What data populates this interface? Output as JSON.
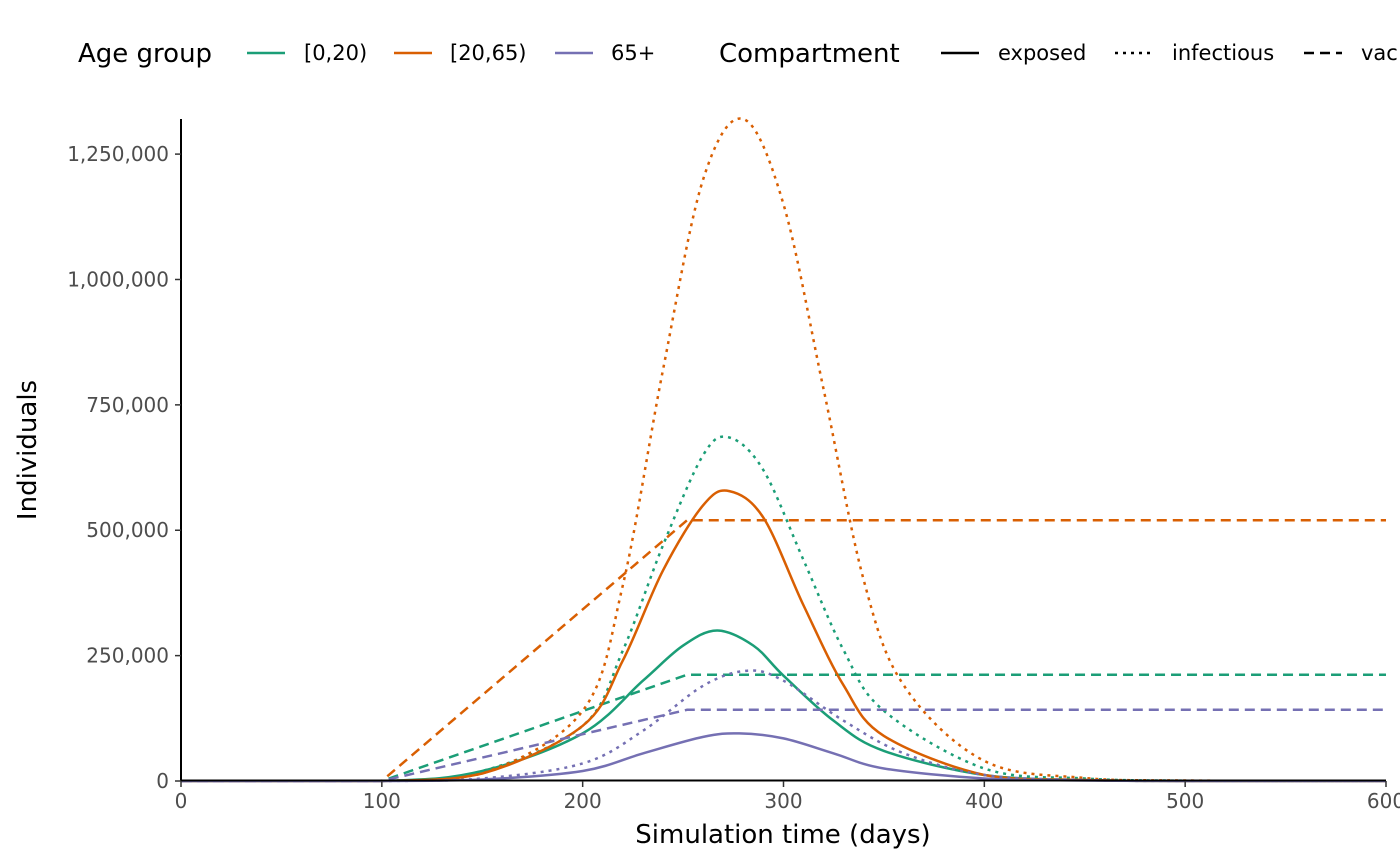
{
  "chart_data": {
    "type": "line",
    "title": "",
    "xlabel": "Simulation time (days)",
    "ylabel": "Individuals",
    "xlim": [
      0,
      600
    ],
    "ylim": [
      0,
      1320000
    ],
    "x_ticks": [
      0,
      100,
      200,
      300,
      400,
      500,
      600
    ],
    "x_tick_labels": [
      "0",
      "100",
      "200",
      "300",
      "400",
      "500",
      "600"
    ],
    "y_ticks": [
      0,
      250000,
      500000,
      750000,
      1000000,
      1250000
    ],
    "y_tick_labels": [
      "0",
      "250,000",
      "500,000",
      "750,000",
      "1,000,000",
      "1,250,000"
    ],
    "grid": false,
    "legend_placement": "top",
    "legend": {
      "age_group": {
        "title": "Age group",
        "entries": [
          {
            "label": "[0,20)",
            "color": "#1b9e77"
          },
          {
            "label": "[20,65)",
            "color": "#d95f02"
          },
          {
            "label": "65+",
            "color": "#7570b3"
          }
        ]
      },
      "compartment": {
        "title": "Compartment",
        "entries": [
          {
            "label": "exposed",
            "linetype": "solid"
          },
          {
            "label": "infectious",
            "linetype": "dotted"
          },
          {
            "label": "vac",
            "linetype": "dashed"
          }
        ]
      }
    },
    "series": [
      {
        "age_group": "[0,20)",
        "compartment": "exposed",
        "x": [
          0,
          100,
          150,
          200,
          230,
          250,
          267,
          285,
          300,
          325,
          350,
          400,
          450,
          500,
          600
        ],
        "y": [
          0,
          0,
          20000,
          95000,
          200000,
          270000,
          300000,
          270000,
          210000,
          120000,
          60000,
          12000,
          2000,
          0,
          0
        ]
      },
      {
        "age_group": "[0,20)",
        "compartment": "infectious",
        "x": [
          0,
          100,
          150,
          200,
          220,
          240,
          260,
          273,
          290,
          310,
          330,
          350,
          400,
          450,
          500,
          600
        ],
        "y": [
          0,
          0,
          20000,
          110000,
          260000,
          470000,
          650000,
          685000,
          620000,
          440000,
          260000,
          140000,
          25000,
          5000,
          500,
          0
        ]
      },
      {
        "age_group": "[0,20)",
        "compartment": "vac",
        "x": [
          0,
          100,
          252,
          600
        ],
        "y": [
          0,
          0,
          212000,
          212000
        ]
      },
      {
        "age_group": "[20,65)",
        "compartment": "exposed",
        "x": [
          0,
          100,
          150,
          200,
          220,
          240,
          260,
          273,
          290,
          310,
          330,
          350,
          400,
          450,
          500,
          600
        ],
        "y": [
          0,
          0,
          15000,
          110000,
          240000,
          420000,
          550000,
          578000,
          525000,
          350000,
          190000,
          90000,
          12000,
          2000,
          0,
          0
        ]
      },
      {
        "age_group": "[20,65)",
        "compartment": "infectious",
        "x": [
          0,
          100,
          150,
          200,
          220,
          240,
          260,
          280,
          300,
          320,
          340,
          360,
          400,
          450,
          500,
          600
        ],
        "y": [
          0,
          0,
          15000,
          140000,
          390000,
          820000,
          1200000,
          1320000,
          1150000,
          780000,
          400000,
          190000,
          40000,
          6000,
          1000,
          0
        ]
      },
      {
        "age_group": "[20,65)",
        "compartment": "vac",
        "x": [
          0,
          100,
          252,
          600
        ],
        "y": [
          0,
          0,
          520000,
          520000
        ]
      },
      {
        "age_group": "65+",
        "compartment": "exposed",
        "x": [
          0,
          100,
          150,
          200,
          230,
          260,
          278,
          300,
          325,
          350,
          400,
          450,
          500,
          600
        ],
        "y": [
          0,
          0,
          3000,
          20000,
          55000,
          88000,
          95000,
          85000,
          55000,
          25000,
          5000,
          1000,
          0,
          0
        ]
      },
      {
        "age_group": "65+",
        "compartment": "infectious",
        "x": [
          0,
          100,
          150,
          200,
          230,
          260,
          282,
          300,
          330,
          360,
          400,
          450,
          500,
          600
        ],
        "y": [
          0,
          0,
          5000,
          35000,
          100000,
          190000,
          220000,
          200000,
          120000,
          55000,
          12000,
          2000,
          0,
          0
        ]
      },
      {
        "age_group": "65+",
        "compartment": "vac",
        "x": [
          0,
          100,
          252,
          600
        ],
        "y": [
          0,
          0,
          142000,
          142000
        ]
      }
    ]
  }
}
